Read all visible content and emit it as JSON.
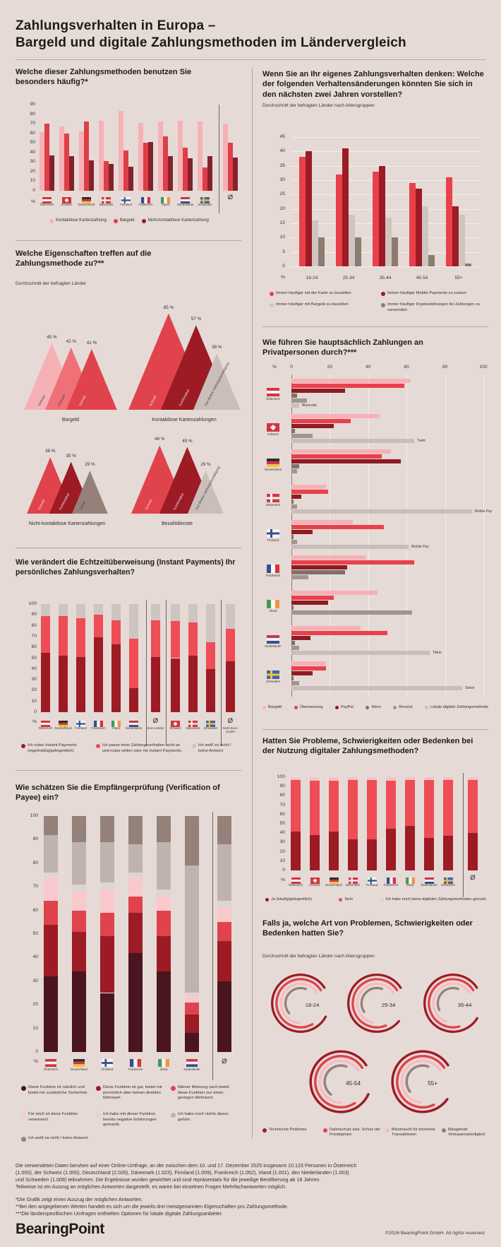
{
  "page": {
    "title_line1": "Zahlungsverhalten in Europa –",
    "title_line2": "Bargeld und digitale Zahlungsmethoden im Ländervergleich"
  },
  "chart_data": [
    {
      "id": "usage",
      "type": "bar",
      "title": "Welche dieser Zahlungsmethoden benutzen Sie besonders häufig?*",
      "ylabel": "%",
      "ylim": [
        0,
        90
      ],
      "ytick": 10,
      "categories": [
        {
          "label": "Österreich",
          "flag": "AT"
        },
        {
          "label": "Schweiz",
          "flag": "CH"
        },
        {
          "label": "Deutschland",
          "flag": "DE"
        },
        {
          "label": "Dänemark",
          "flag": "DK"
        },
        {
          "label": "Finnland",
          "flag": "FI"
        },
        {
          "label": "Frankreich",
          "flag": "FR"
        },
        {
          "label": "Irland",
          "flag": "IE"
        },
        {
          "label": "Niederlande",
          "flag": "NL"
        },
        {
          "label": "Schweden",
          "flag": "SE"
        },
        {
          "label": "",
          "flag": "avg"
        }
      ],
      "series": [
        {
          "name": "Kontaktlose Kartenzahlung",
          "color": "#f6b1b6",
          "values": [
            61,
            67,
            62,
            73,
            83,
            71,
            72,
            73,
            72,
            70
          ]
        },
        {
          "name": "Bargeld",
          "color": "#dd3e47",
          "values": [
            70,
            60,
            72,
            31,
            42,
            50,
            57,
            45,
            24,
            50
          ]
        },
        {
          "name": "Nicht-kontaktlose Kartenzahlung",
          "color": "#84222c",
          "values": [
            37,
            36,
            32,
            28,
            25,
            51,
            36,
            34,
            36,
            35
          ]
        }
      ]
    },
    {
      "id": "behavior",
      "type": "bar",
      "title": "Wenn Sie an Ihr eigenes Zahlungsverhalten denken: Welche der folgenden Verhaltensänderungen könnten Sie sich in den nächsten zwei Jahren vorstellen?",
      "subtitle": "Durchschnitt der befragten Länder nach Altersgruppen",
      "ylabel": "%",
      "ylim": [
        0,
        45
      ],
      "ytick": 5,
      "categories": [
        "18-24",
        "25-34",
        "35-44",
        "45-54",
        "55+"
      ],
      "series": [
        {
          "name": "Immer häufiger mit der Karte zu bezahlen",
          "color": "#e8414b",
          "values": [
            38,
            32,
            33,
            29,
            31
          ]
        },
        {
          "name": "Immer häufiger Mobile Payments zu nutzen",
          "color": "#9c1b24",
          "values": [
            40,
            41,
            35,
            27,
            21
          ]
        },
        {
          "name": "Immer häufiger mit Bargeld zu bezahlen",
          "color": "#cfc5c0",
          "values": [
            16,
            18,
            17,
            21,
            18
          ]
        },
        {
          "name": "Immer häufiger Kryptowährungen für Zahlungen zu verwenden",
          "color": "#8d7b70",
          "values": [
            10,
            10,
            10,
            4,
            1
          ]
        }
      ]
    },
    {
      "id": "attributes",
      "type": "triangle",
      "title": "Welche Eigenschaften treffen auf die Zahlungsmethode zu?**",
      "subtitle": "Durchschnitt der befragten Länder",
      "unit": "%",
      "groups": [
        {
          "label": "Bargeld",
          "items": [
            {
              "name": "Vertraut",
              "value": 45,
              "color": "#f6b1b6"
            },
            {
              "name": "Anonym",
              "value": 42,
              "color": "#ef7076"
            },
            {
              "name": "Schnell",
              "value": 41,
              "color": "#e0434c"
            }
          ]
        },
        {
          "label": "Kontaktlose Kartenzahlungen",
          "items": [
            {
              "name": "Schnell",
              "value": 65,
              "color": "#e0434c"
            },
            {
              "name": "Komfortabel",
              "value": 57,
              "color": "#9c1b24"
            },
            {
              "name": "Gut direkte Zahlungsbestätigung",
              "value": 38,
              "color": "#c9beba"
            }
          ]
        },
        {
          "label": "Nicht-kontaktlose Kartenzahlungen",
          "items": [
            {
              "name": "Schnell",
              "value": 38,
              "color": "#e0434c"
            },
            {
              "name": "Komfortabel",
              "value": 35,
              "color": "#9c1b24"
            },
            {
              "name": "Sicher",
              "value": 29,
              "color": "#94827a"
            }
          ]
        },
        {
          "label": "Bezahldienste",
          "items": [
            {
              "name": "Schnell",
              "value": 46,
              "color": "#e0434c"
            },
            {
              "name": "Komfortabel",
              "value": 45,
              "color": "#9c1b24"
            },
            {
              "name": "Gut direkte Zahlungsbestätigung",
              "value": 29,
              "color": "#c9beba"
            }
          ]
        }
      ]
    },
    {
      "id": "p2p",
      "type": "hbar",
      "title": "Wie führen Sie hauptsächlich Zahlungen an Privatpersonen durch?***",
      "xlabel": "%",
      "xlim": [
        0,
        100
      ],
      "xticks": [
        0,
        20,
        40,
        60,
        80,
        100
      ],
      "categories": [
        {
          "label": "Österreich",
          "flag": "AT"
        },
        {
          "label": "Schweiz",
          "flag": "CH"
        },
        {
          "label": "Deutschland",
          "flag": "DE"
        },
        {
          "label": "Dänemark",
          "flag": "DK"
        },
        {
          "label": "Finnland",
          "flag": "FI"
        },
        {
          "label": "Frankreich",
          "flag": "FR"
        },
        {
          "label": "Irland",
          "flag": "IE"
        },
        {
          "label": "Niederlande",
          "flag": "NL"
        },
        {
          "label": "Schweden",
          "flag": "SE"
        }
      ],
      "series": [
        {
          "name": "Bargeld",
          "color": "#f6b1b6",
          "values": [
            62,
            46,
            52,
            18,
            32,
            39,
            45,
            36,
            18
          ]
        },
        {
          "name": "Überweisung",
          "color": "#e8414b",
          "values": [
            59,
            31,
            47,
            19,
            48,
            64,
            22,
            50,
            18
          ]
        },
        {
          "name": "PayPal",
          "color": "#8e1b24",
          "values": [
            28,
            22,
            57,
            5,
            11,
            29,
            19,
            10,
            11
          ]
        },
        {
          "name": "Wero",
          "color": "#80706a",
          "values": [
            3,
            2,
            4,
            1,
            1,
            28,
            1,
            2,
            1
          ]
        },
        {
          "name": "Revolut",
          "color": "#a3958d",
          "values": [
            8,
            11,
            3,
            3,
            3,
            9,
            63,
            4,
            4
          ]
        },
        {
          "name": "Lokale digitale Zahlungsmethode",
          "color": "#c9beba",
          "values": [
            4,
            64,
            0,
            94,
            61,
            0,
            0,
            72,
            89
          ]
        }
      ],
      "annotations": [
        {
          "cat": 0,
          "series": 5,
          "label": "Bluecode"
        },
        {
          "cat": 1,
          "series": 5,
          "label": "Twint"
        },
        {
          "cat": 3,
          "series": 5,
          "label": "Mobile Pay"
        },
        {
          "cat": 4,
          "series": 5,
          "label": "Mobile Pay"
        },
        {
          "cat": 7,
          "series": 5,
          "label": "Tikkie"
        },
        {
          "cat": 8,
          "series": 5,
          "label": "Swish"
        }
      ]
    },
    {
      "id": "instant",
      "type": "stacked-bar",
      "title": "Wie verändert die Echtzeitüberweisung (Instant Payments) Ihr persönliches Zahlungsverhalten?",
      "ylabel": "%",
      "ylim": [
        0,
        100
      ],
      "ytick": 10,
      "categories": [
        {
          "label": "Österreich",
          "flag": "AT"
        },
        {
          "label": "Deutschland",
          "flag": "DE"
        },
        {
          "label": "Finnland",
          "flag": "FI"
        },
        {
          "label": "Frankreich",
          "flag": "FR"
        },
        {
          "label": "Irland",
          "flag": "IE"
        },
        {
          "label": "Niederlande",
          "flag": "NL"
        },
        {
          "label": "Euro-Länder",
          "flag": "avg"
        },
        {
          "label": "Schweiz",
          "flag": "CH"
        },
        {
          "label": "Dänemark",
          "flag": "DK"
        },
        {
          "label": "Schweden",
          "flag": "SE"
        },
        {
          "label": "Nicht-Euro-Länder",
          "flag": "avg"
        }
      ],
      "dividers": [
        6,
        7,
        10
      ],
      "series": [
        {
          "name": "Ich nutze Instant Payments (regelmäßig/gelegentlich).",
          "color": "#9c1b24",
          "values": [
            55,
            52,
            51,
            69,
            63,
            22,
            51,
            50,
            52,
            40,
            47
          ]
        },
        {
          "name": "Ich passe mein Zahlungsverhalten nicht an und nutze selten oder nie Instant Payments.",
          "color": "#ee4d55",
          "values": [
            34,
            37,
            36,
            21,
            22,
            46,
            34,
            34,
            31,
            25,
            30
          ]
        },
        {
          "name": "Ich weiß es nicht / keine Antwort.",
          "color": "#cfc5c0",
          "values": [
            11,
            11,
            13,
            10,
            15,
            32,
            15,
            16,
            17,
            35,
            23
          ]
        }
      ]
    },
    {
      "id": "vop",
      "type": "stacked-bar",
      "title": "Wie schätzen Sie die Empfängerprüfung (Verification of Payee) ein?",
      "ylabel": "%",
      "ylim": [
        0,
        100
      ],
      "ytick": 10,
      "categories": [
        {
          "label": "Österreich",
          "flag": "AT"
        },
        {
          "label": "Deutschland",
          "flag": "DE"
        },
        {
          "label": "Finnland",
          "flag": "FI"
        },
        {
          "label": "Frankreich",
          "flag": "FR"
        },
        {
          "label": "Irland",
          "flag": "IE"
        },
        {
          "label": "Niederlande",
          "flag": "NL"
        },
        {
          "label": "",
          "flag": "avg"
        }
      ],
      "dividers": [
        6
      ],
      "series": [
        {
          "name": "Diese Funktion ist nützlich und bietet mir zusätzliche Sicherheit.",
          "color": "#4a1420",
          "values": [
            32,
            34,
            25,
            42,
            34,
            8,
            30
          ]
        },
        {
          "name": "Diese Funktion ist gut, bietet mir persönlich aber keinen direkten Mehrwert.",
          "color": "#9c1b24",
          "values": [
            22,
            17,
            24,
            17,
            15,
            8,
            17
          ]
        },
        {
          "name": "Meiner Meinung nach bietet diese Funktion nur einen geringen Mehrwert.",
          "color": "#e0434c",
          "values": [
            10,
            9,
            10,
            7,
            11,
            5,
            8
          ]
        },
        {
          "name": "Für mich ist diese Funktion verwirrend.",
          "color": "#f9c9cd",
          "values": [
            10,
            8,
            10,
            8,
            6,
            3,
            6
          ]
        },
        {
          "name": "Ich habe mit dieser Funktion bereits negative Erfahrungen gemacht.",
          "color": "#ded5d2",
          "values": [
            2,
            3,
            3,
            2,
            3,
            1,
            3
          ]
        },
        {
          "name": "Ich habe noch nichts davon gehört.",
          "color": "#bfb3ae",
          "values": [
            16,
            18,
            17,
            12,
            20,
            54,
            24
          ]
        },
        {
          "name": "Ich weiß es nicht / keine Antwort.",
          "color": "#94827a",
          "values": [
            8,
            11,
            11,
            12,
            11,
            21,
            12
          ]
        }
      ]
    },
    {
      "id": "problems",
      "type": "stacked-bar",
      "title": "Hatten Sie Probleme, Schwierigkeiten oder Bedenken bei der Nutzung digitaler Zahlungsmethoden?",
      "ylabel": "%",
      "ylim": [
        0,
        100
      ],
      "ytick": 10,
      "categories": [
        {
          "label": "Österreich",
          "flag": "AT"
        },
        {
          "label": "Schweiz",
          "flag": "CH"
        },
        {
          "label": "Deutschland",
          "flag": "DE"
        },
        {
          "label": "Dänemark",
          "flag": "DK"
        },
        {
          "label": "Finnland",
          "flag": "FI"
        },
        {
          "label": "Frankreich",
          "flag": "FR"
        },
        {
          "label": "Irland",
          "flag": "IE"
        },
        {
          "label": "Niederlande",
          "flag": "NL"
        },
        {
          "label": "Schweden",
          "flag": "SE"
        },
        {
          "label": "",
          "flag": "avg"
        }
      ],
      "dividers": [
        9
      ],
      "series": [
        {
          "name": "Ja (häufig/gelegentlich)",
          "color": "#9c1b24",
          "values": [
            42,
            38,
            42,
            33,
            33,
            45,
            48,
            35,
            37,
            40
          ]
        },
        {
          "name": "Nein",
          "color": "#ee4d55",
          "values": [
            55,
            58,
            54,
            64,
            64,
            51,
            49,
            62,
            60,
            57
          ]
        },
        {
          "name": "Ich habe noch keine digitalen Zahlungsmethoden genutzt.",
          "color": "#f6c3c7",
          "values": [
            3,
            4,
            4,
            3,
            3,
            4,
            3,
            3,
            3,
            3
          ]
        }
      ]
    },
    {
      "id": "issues",
      "type": "radial",
      "title": "Falls ja, welche Art von Problemen, Schwierigkeiten oder Bedenken hatten Sie?",
      "subtitle": "Durchschnitt der befragten Länder nach Altersgruppen",
      "groups": [
        "18-24",
        "25-34",
        "35-44",
        "45-54",
        "55+"
      ],
      "series": [
        {
          "name": "Technische Probleme",
          "color": "#9c1b24"
        },
        {
          "name": "Datenschutz bzw. Schutz der Privatsphäre",
          "color": "#e0434c"
        },
        {
          "name": "Missbrauch für kriminelle Transaktionen",
          "color": "#f6bcc1"
        },
        {
          "name": "Mangelnde Vertrauenswürdigkeit",
          "color": "#94827a"
        }
      ],
      "values": [
        [
          83,
          74,
          65,
          42
        ],
        [
          80,
          72,
          62,
          40
        ],
        [
          82,
          70,
          60,
          38
        ],
        [
          84,
          75,
          66,
          45
        ],
        [
          81,
          73,
          64,
          41
        ]
      ]
    }
  ],
  "footer": {
    "lines": [
      "Die verwendeten Daten beruhen auf einer Online-Umfrage, an der zwischen dem 10. und 17. Dezember 2025 insgesamt 10.123 Personen in Österreich",
      "(1.000), der Schweiz (1.000), Deutschland (2.026), Dänemark (1.023), Finnland (1.009), Frankreich (1.052), Irland (1.001), den Niederlanden (1.003)",
      "und Schweden (1.009) teilnahmen. Die Ergebnisse wurden gewichtet und sind repräsentativ für die jeweilige Bevölkerung ab 18 Jahren.",
      "Teilweise ist ein Auszug an möglichen Antworten dargestellt, es waren bei einzelnen Fragen Mehrfachantworten möglich."
    ],
    "footnotes": [
      "*Die Grafik zeigt einen Auszug der möglichen Antworten.",
      "**Bei den angegebenen Werten handelt es sich um die jeweils drei meistgenannten Eigenschaften pro Zahlungsmethode.",
      "***Die länderspezifischen Umfragen enthielten Optionen für lokale digitale Zahlungsanbieter."
    ]
  },
  "brand": {
    "logo": "BearingPoint",
    "copyright": "©2026 BearingPoint GmbH. All rights reserved."
  }
}
